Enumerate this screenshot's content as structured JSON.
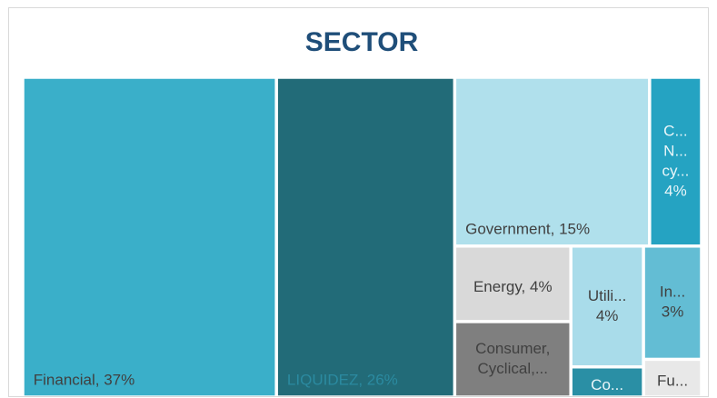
{
  "chart_data": {
    "type": "treemap",
    "title": "SECTOR",
    "labels": [
      [
        "Financial, 37%"
      ],
      [
        "LIQUIDEZ, 26%"
      ],
      [
        "Government, 15%"
      ],
      [
        "C...",
        "N...",
        "cy...",
        "4%"
      ],
      [
        "Energy, 4%"
      ],
      [
        "Consumer,",
        "Cyclical,..."
      ],
      [
        "Utili...",
        "4%"
      ],
      [
        "Co..."
      ],
      [
        "In...",
        "3%"
      ],
      [
        "Fu..."
      ]
    ],
    "values": [
      37,
      26,
      15,
      4,
      4,
      4,
      4,
      1,
      3,
      1
    ],
    "colors": [
      "#3aafc9",
      "#226b78",
      "#b0e0ec",
      "#25a3c2",
      "#d9d9d9",
      "#7f7f7f",
      "#a9dcea",
      "#2a8fa5",
      "#63bdd4",
      "#e8e8e8"
    ]
  }
}
